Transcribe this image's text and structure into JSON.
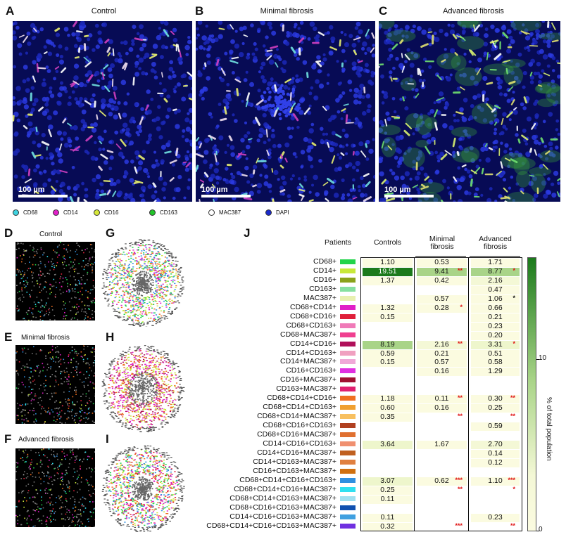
{
  "panels": {
    "A": {
      "letter": "A",
      "title": "Control",
      "scale": "100 µm"
    },
    "B": {
      "letter": "B",
      "title": "Minimal fibrosis",
      "scale": "100 µm"
    },
    "C": {
      "letter": "C",
      "title": "Advanced fibrosis",
      "scale": "100 µm"
    },
    "D": {
      "letter": "D",
      "title": "Control"
    },
    "E": {
      "letter": "E",
      "title": "Minimal fibrosis"
    },
    "F": {
      "letter": "F",
      "title": "Advanced fibrosis"
    },
    "G": {
      "letter": "G"
    },
    "H": {
      "letter": "H"
    },
    "I": {
      "letter": "I"
    },
    "J": {
      "letter": "J"
    }
  },
  "legend": [
    {
      "label": "CD68",
      "color": "#3fd3e0"
    },
    {
      "label": "CD14",
      "color": "#e020c8"
    },
    {
      "label": "CD16",
      "color": "#d7e83a"
    },
    {
      "label": "CD163",
      "color": "#22c42a"
    },
    {
      "label": "MAC387",
      "color": "#ffffff"
    },
    {
      "label": "DAPI",
      "color": "#1a2acc"
    }
  ],
  "table": {
    "header_patients": "Patients",
    "columns": [
      {
        "label": "Controls"
      },
      {
        "label": "Minimal\nfibrosis"
      },
      {
        "label": "Advanced\nfibrosis"
      }
    ],
    "colorbar": {
      "label": "% of total population",
      "ticks": [
        "10",
        "0"
      ]
    },
    "rows": [
      {
        "label": "CD68+",
        "color": "#22d44a",
        "vals": [
          "1.10",
          "0.53",
          "1.71"
        ],
        "stars": [
          "",
          "",
          ""
        ],
        "bg": [
          "#fbfbe0",
          "#fbfbe0",
          "#fbfbe0"
        ]
      },
      {
        "label": "CD14+",
        "color": "#c8e83a",
        "vals": [
          "19.51",
          "9.41",
          "8.77"
        ],
        "stars": [
          "",
          "**",
          "*"
        ],
        "bg": [
          "#1b7a1b",
          "#a9d488",
          "#a9d488"
        ]
      },
      {
        "label": "CD16+",
        "color": "#8aa21a",
        "vals": [
          "1.37",
          "0.42",
          "2.16"
        ],
        "stars": [
          "",
          "",
          ""
        ],
        "bg": [
          "#fbfbe0",
          "#fbfbe0",
          "#f4f8d6"
        ]
      },
      {
        "label": "CD163+",
        "color": "#86e0a0",
        "vals": [
          "",
          "",
          "0.47"
        ],
        "stars": [
          "",
          "",
          ""
        ],
        "bg": [
          "",
          "",
          "#fbfbe0"
        ]
      },
      {
        "label": "MAC387+",
        "color": "#e8f0b0",
        "vals": [
          "",
          "0.57",
          "1.06"
        ],
        "stars": [
          "",
          "",
          "*"
        ],
        "bg": [
          "",
          "#fbfbe0",
          "#fbfbe0"
        ]
      },
      {
        "label": "CD68+CD14+",
        "color": "#e020c8",
        "vals": [
          "1.32",
          "0.28",
          "0.66"
        ],
        "stars": [
          "",
          "*",
          ""
        ],
        "bg": [
          "#fbfbe0",
          "#fbfbe0",
          "#fbfbe0"
        ]
      },
      {
        "label": "CD68+CD16+",
        "color": "#e0203a",
        "vals": [
          "0.15",
          "",
          "0.21"
        ],
        "stars": [
          "",
          "",
          ""
        ],
        "bg": [
          "#fbfbe0",
          "",
          "#fbfbe0"
        ]
      },
      {
        "label": "CD68+CD163+",
        "color": "#f07ab8",
        "vals": [
          "",
          "",
          "0.23"
        ],
        "stars": [
          "",
          "",
          ""
        ],
        "bg": [
          "",
          "",
          "#fbfbe0"
        ]
      },
      {
        "label": "CD68+MAC387+",
        "color": "#f04090",
        "vals": [
          "",
          "",
          "0.20"
        ],
        "stars": [
          "",
          "",
          ""
        ],
        "bg": [
          "",
          "",
          "#fbfbe0"
        ]
      },
      {
        "label": "CD14+CD16+",
        "color": "#b0105a",
        "vals": [
          "8.19",
          "2.16",
          "3.31"
        ],
        "stars": [
          "",
          "**",
          "*"
        ],
        "bg": [
          "#a9d488",
          "#f4f8d6",
          "#eef6cc"
        ]
      },
      {
        "label": "CD14+CD163+",
        "color": "#f0a0c0",
        "vals": [
          "0.59",
          "0.21",
          "0.51"
        ],
        "stars": [
          "",
          "",
          ""
        ],
        "bg": [
          "#fbfbe0",
          "#fbfbe0",
          "#fbfbe0"
        ]
      },
      {
        "label": "CD14+MAC387+",
        "color": "#f0a8d8",
        "vals": [
          "0.15",
          "0.57",
          "0.58"
        ],
        "stars": [
          "",
          "",
          ""
        ],
        "bg": [
          "#fbfbe0",
          "#fbfbe0",
          "#fbfbe0"
        ]
      },
      {
        "label": "CD16+CD163+",
        "color": "#e030e0",
        "vals": [
          "",
          "0.16",
          "1.29"
        ],
        "stars": [
          "",
          "",
          ""
        ],
        "bg": [
          "",
          "#fbfbe0",
          "#fbfbe0"
        ]
      },
      {
        "label": "CD16+MAC387+",
        "color": "#a01030",
        "vals": [
          "",
          "",
          ""
        ],
        "stars": [
          "",
          "",
          ""
        ],
        "bg": [
          "",
          "",
          ""
        ]
      },
      {
        "label": "CD163+MAC387+",
        "color": "#e02070",
        "vals": [
          "",
          "",
          ""
        ],
        "stars": [
          "",
          "",
          ""
        ],
        "bg": [
          "",
          "",
          ""
        ]
      },
      {
        "label": "CD68+CD14+CD16+",
        "color": "#f07020",
        "vals": [
          "1.18",
          "0.11",
          "0.30"
        ],
        "stars": [
          "",
          "**",
          "**"
        ],
        "bg": [
          "#fbfbe0",
          "#fbfbe0",
          "#fbfbe0"
        ]
      },
      {
        "label": "CD68+CD14+CD163+",
        "color": "#f0a030",
        "vals": [
          "0.60",
          "0.16",
          "0.25"
        ],
        "stars": [
          "",
          "",
          ""
        ],
        "bg": [
          "#fbfbe0",
          "#fbfbe0",
          "#fbfbe0"
        ]
      },
      {
        "label": "CD68+CD14+MAC387+",
        "color": "#f8c060",
        "vals": [
          "0.35",
          "",
          ""
        ],
        "stars": [
          "",
          "**",
          "**"
        ],
        "bg": [
          "#fbfbe0",
          "",
          ""
        ]
      },
      {
        "label": "CD68+CD16+CD163+",
        "color": "#b04020",
        "vals": [
          "",
          "",
          "0.59"
        ],
        "stars": [
          "",
          "",
          ""
        ],
        "bg": [
          "",
          "",
          "#fbfbe0"
        ]
      },
      {
        "label": "CD68+CD16+MAC387+",
        "color": "#e07030",
        "vals": [
          "",
          "",
          ""
        ],
        "stars": [
          "",
          "",
          ""
        ],
        "bg": [
          "",
          "",
          ""
        ]
      },
      {
        "label": "CD14+CD16+CD163+",
        "color": "#f09070",
        "vals": [
          "3.64",
          "1.67",
          "2.70"
        ],
        "stars": [
          "",
          "",
          ""
        ],
        "bg": [
          "#eef6cc",
          "#fbfbe0",
          "#f4f8d6"
        ]
      },
      {
        "label": "CD14+CD16+MAC387+",
        "color": "#c06020",
        "vals": [
          "",
          "",
          "0.14"
        ],
        "stars": [
          "",
          "",
          ""
        ],
        "bg": [
          "",
          "",
          "#fbfbe0"
        ]
      },
      {
        "label": "CD14+CD163+MAC387+",
        "color": "#e08040",
        "vals": [
          "",
          "",
          "0.12"
        ],
        "stars": [
          "",
          "",
          ""
        ],
        "bg": [
          "",
          "",
          "#fbfbe0"
        ]
      },
      {
        "label": "CD16+CD163+MAC387+",
        "color": "#d07010",
        "vals": [
          "",
          "",
          ""
        ],
        "stars": [
          "",
          "",
          ""
        ],
        "bg": [
          "",
          "",
          ""
        ]
      },
      {
        "label": "CD68+CD14+CD16+CD163+",
        "color": "#3090e0",
        "vals": [
          "3.07",
          "0.62",
          "1.10"
        ],
        "stars": [
          "",
          "***",
          "***"
        ],
        "bg": [
          "#eef6cc",
          "#fbfbe0",
          "#fbfbe0"
        ]
      },
      {
        "label": "CD68+CD14+CD16+MAC387+",
        "color": "#30e0f0",
        "vals": [
          "0.25",
          "",
          ""
        ],
        "stars": [
          "",
          "**",
          "*"
        ],
        "bg": [
          "#fbfbe0",
          "",
          ""
        ]
      },
      {
        "label": "CD68+CD14+CD163+MAC387+",
        "color": "#a0e0f0",
        "vals": [
          "0.11",
          "",
          ""
        ],
        "stars": [
          "",
          "",
          ""
        ],
        "bg": [
          "#fbfbe0",
          "",
          ""
        ]
      },
      {
        "label": "CD68+CD16+CD163+MAC387+",
        "color": "#1050b0",
        "vals": [
          "",
          "",
          ""
        ],
        "stars": [
          "",
          "",
          ""
        ],
        "bg": [
          "",
          "",
          ""
        ]
      },
      {
        "label": "CD14+CD16+CD163+MAC387+",
        "color": "#40a0e0",
        "vals": [
          "0.11",
          "",
          "0.23"
        ],
        "stars": [
          "",
          "",
          ""
        ],
        "bg": [
          "#fbfbe0",
          "",
          "#fbfbe0"
        ]
      },
      {
        "label": "CD68+CD14+CD16+CD163+MAC387+",
        "color": "#7030e0",
        "vals": [
          "0.32",
          "",
          ""
        ],
        "stars": [
          "",
          "***",
          "**"
        ],
        "bg": [
          "#fbfbe0",
          "",
          ""
        ]
      }
    ]
  }
}
